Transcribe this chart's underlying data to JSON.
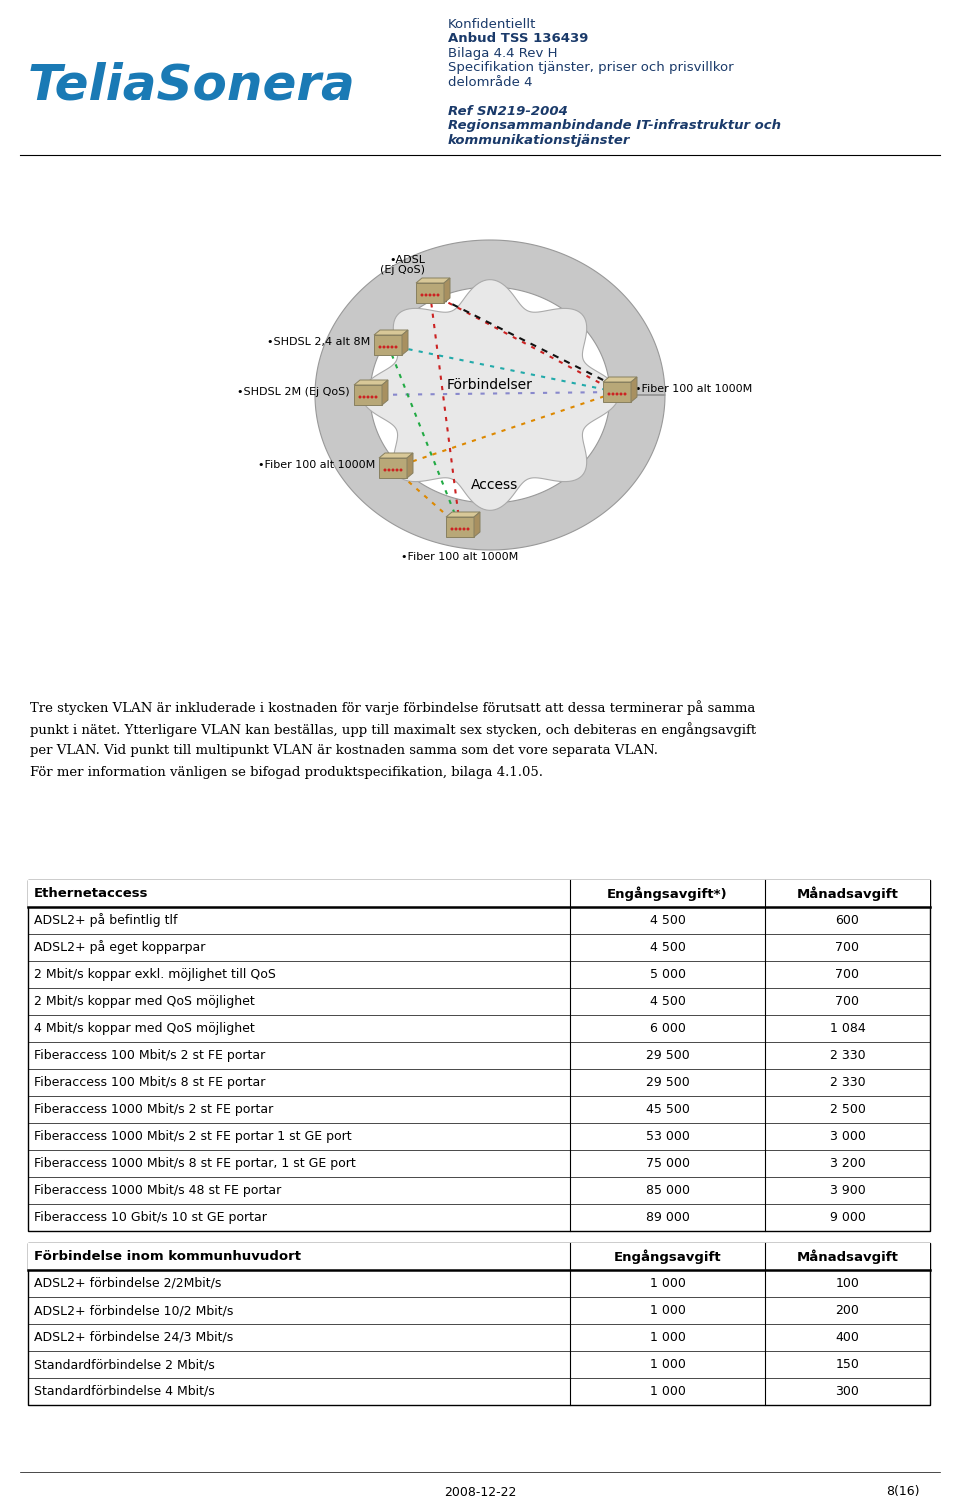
{
  "telia_color": "#1a7ab5",
  "header_color": "#1a3a6a",
  "table1_header": [
    "Ethernetaccess",
    "Engångsavgift*)",
    "Månadsavgift"
  ],
  "table1_rows": [
    [
      "ADSL2+ på befintlig tlf",
      "4 500",
      "600"
    ],
    [
      "ADSL2+ på eget kopparpar",
      "4 500",
      "700"
    ],
    [
      "2 Mbit/s koppar exkl. möjlighet till QoS",
      "5 000",
      "700"
    ],
    [
      "2 Mbit/s koppar med QoS möjlighet",
      "4 500",
      "700"
    ],
    [
      "4 Mbit/s koppar med QoS möjlighet",
      "6 000",
      "1 084"
    ],
    [
      "Fiberaccess 100 Mbit/s 2 st FE portar",
      "29 500",
      "2 330"
    ],
    [
      "Fiberaccess 100 Mbit/s 8 st FE portar",
      "29 500",
      "2 330"
    ],
    [
      "Fiberaccess 1000 Mbit/s 2 st FE portar",
      "45 500",
      "2 500"
    ],
    [
      "Fiberaccess 1000 Mbit/s 2 st FE portar 1 st GE port",
      "53 000",
      "3 000"
    ],
    [
      "Fiberaccess 1000 Mbit/s 8 st FE portar, 1 st GE port",
      "75 000",
      "3 200"
    ],
    [
      "Fiberaccess 1000 Mbit/s 48 st FE portar",
      "85 000",
      "3 900"
    ],
    [
      "Fiberaccess 10 Gbit/s 10 st GE portar",
      "89 000",
      "9 000"
    ]
  ],
  "table2_header": [
    "Förbindelse inom kommunhuvudort",
    "Engångsavgift",
    "Månadsavgift"
  ],
  "table2_rows": [
    [
      "ADSL2+ förbindelse 2/2Mbit/s",
      "1 000",
      "100"
    ],
    [
      "ADSL2+ förbindelse 10/2 Mbit/s",
      "1 000",
      "200"
    ],
    [
      "ADSL2+ förbindelse 24/3 Mbit/s",
      "1 000",
      "400"
    ],
    [
      "Standardförbindelse 2 Mbit/s",
      "1 000",
      "150"
    ],
    [
      "Standardförbindelse 4 Mbit/s",
      "1 000",
      "300"
    ]
  ],
  "footer_date": "2008-12-22",
  "footer_page": "8(16)",
  "body_text_lines": [
    "Tre stycken VLAN är inkluderade i kostnaden för varje förbindelse förutsatt att dessa terminerar på samma",
    "punkt i nätet. Ytterligare VLAN kan beställas, upp till maximalt sex stycken, och debiteras en engångsavgift",
    "per VLAN. Vid punkt till multipunkt VLAN är kostnaden samma som det vore separata VLAN.",
    "För mer information vänligen se bifogad produktspecifikation, bilaga 4.1.05."
  ]
}
